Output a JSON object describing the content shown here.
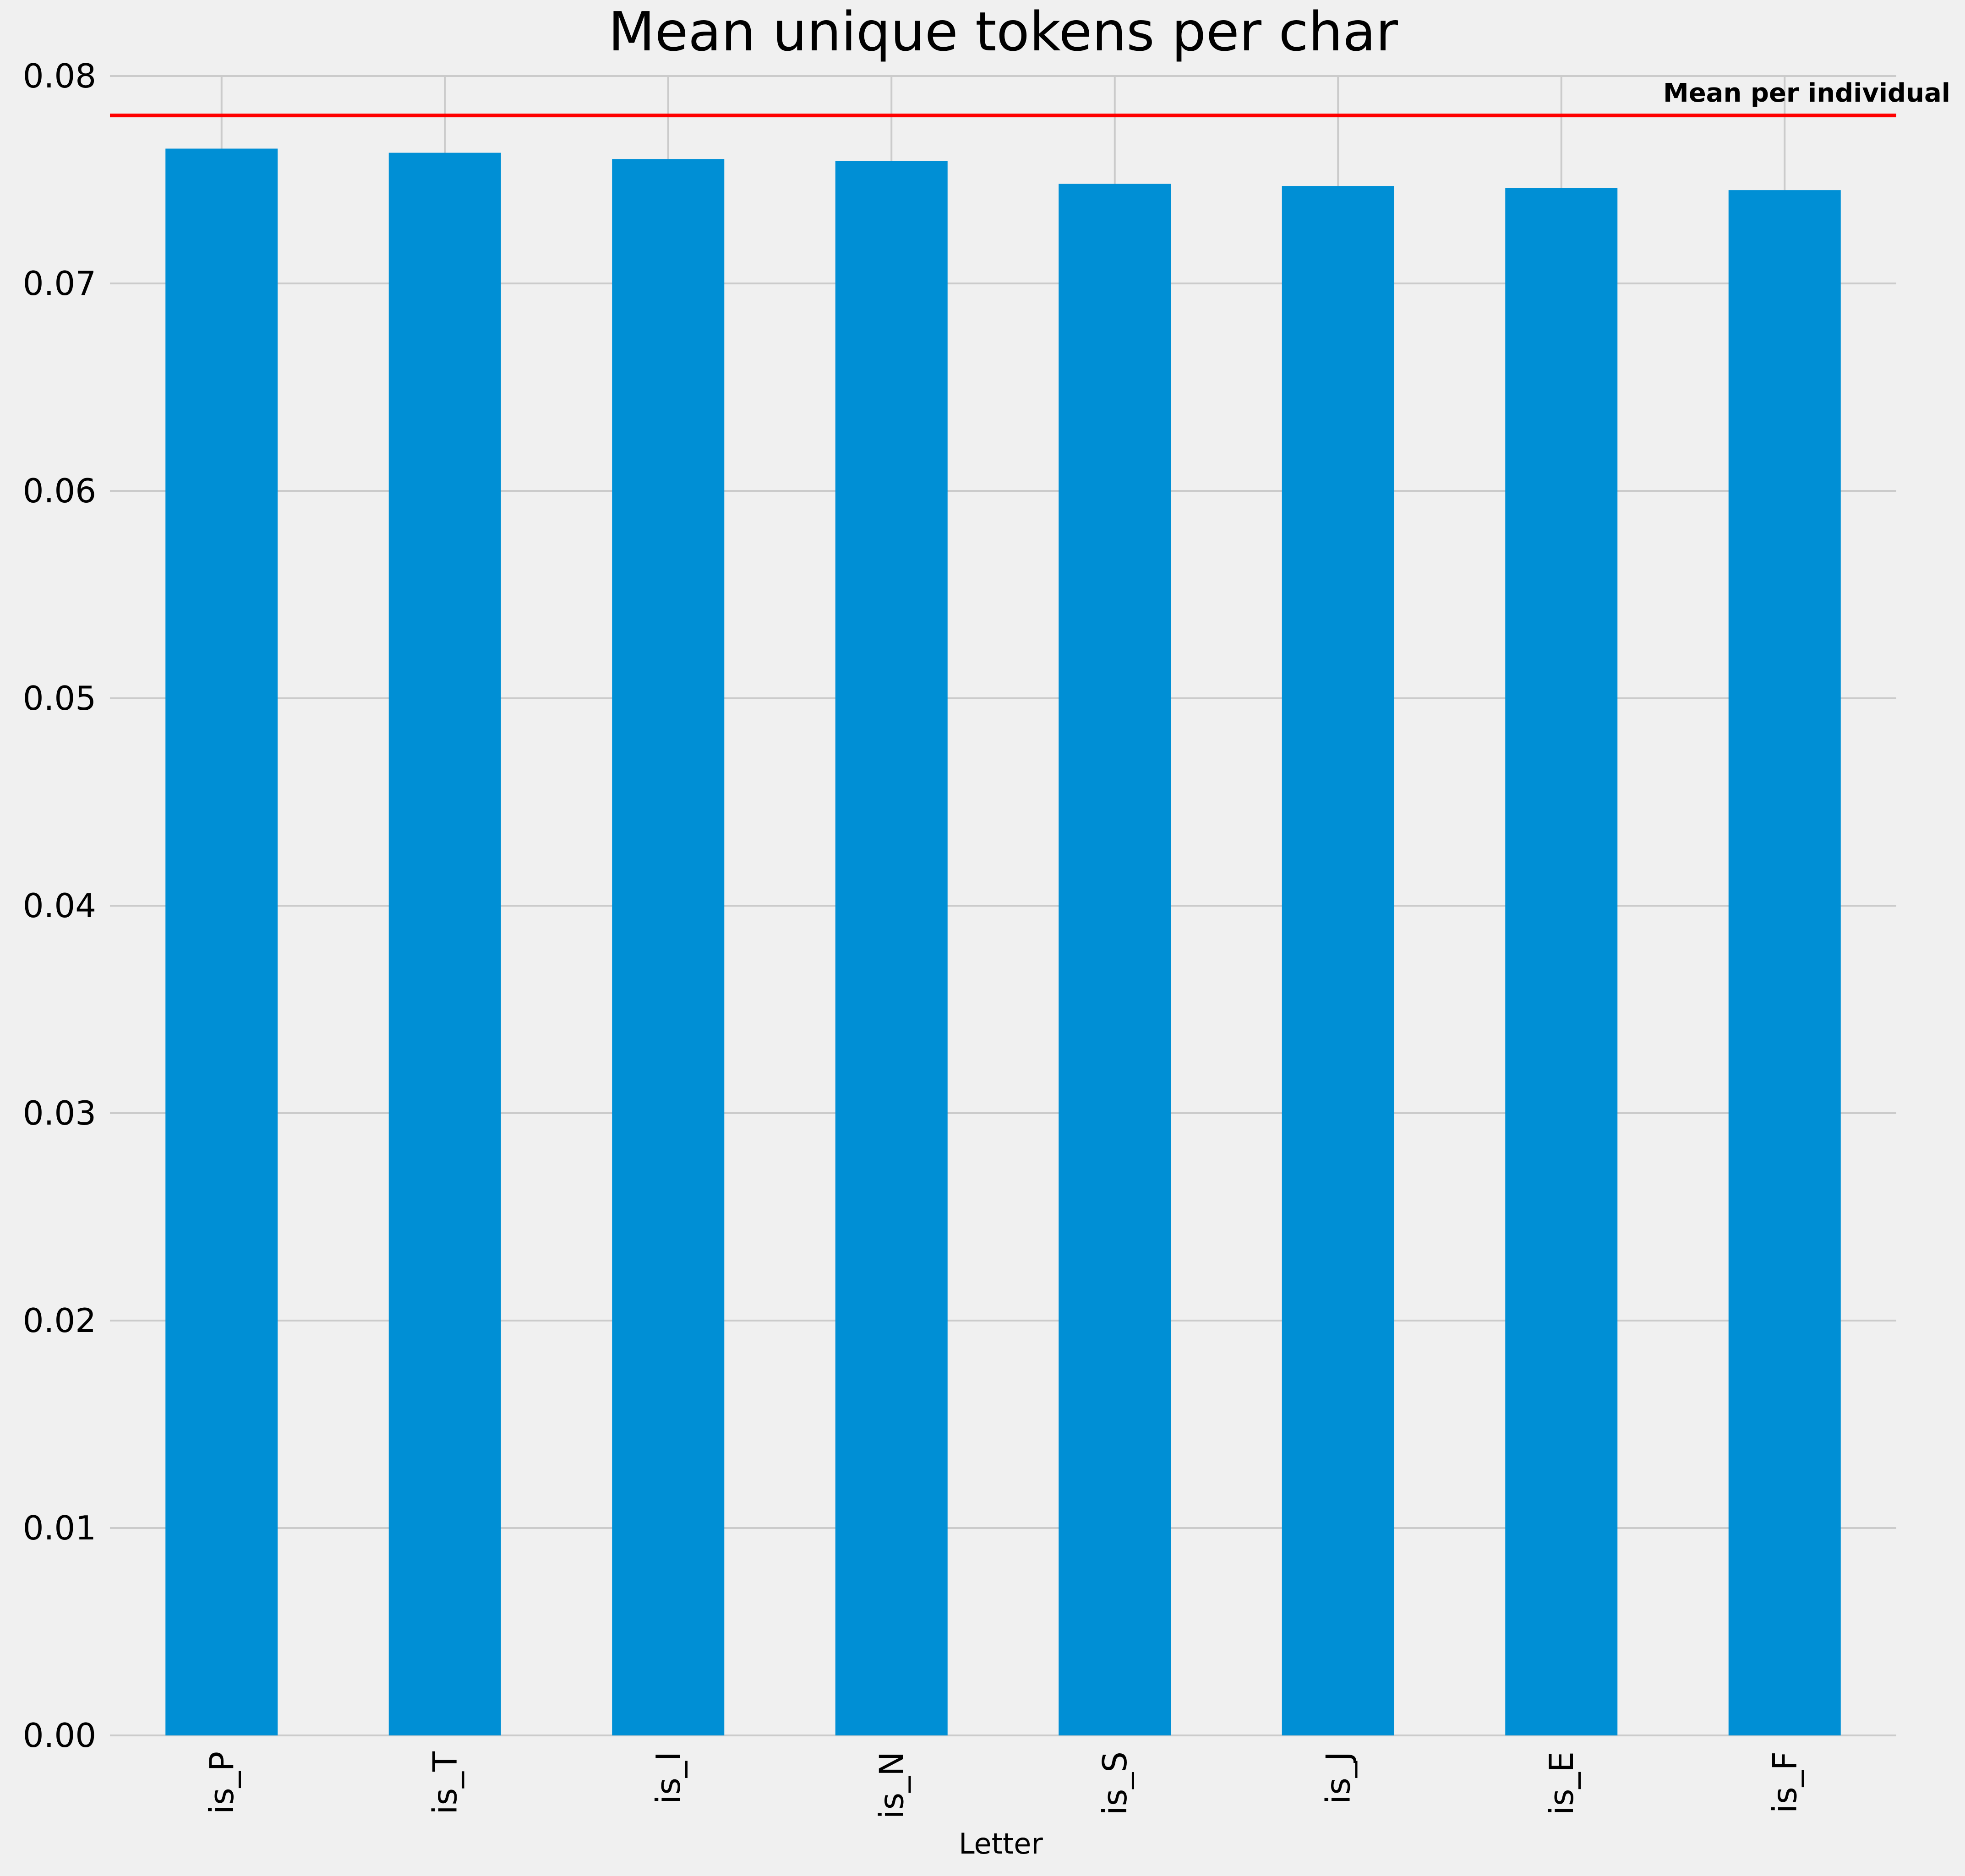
{
  "chart_data": {
    "type": "bar",
    "title": "Mean unique tokens per char",
    "xlabel": "Letter",
    "ylabel": "",
    "categories": [
      "is_P",
      "is_T",
      "is_I",
      "is_N",
      "is_S",
      "is_J",
      "is_E",
      "is_F"
    ],
    "values": [
      0.0765,
      0.0763,
      0.076,
      0.0759,
      0.0748,
      0.0747,
      0.0746,
      0.0745
    ],
    "ylim": [
      0,
      0.08
    ],
    "yticks": [
      "0.00",
      "0.01",
      "0.02",
      "0.03",
      "0.04",
      "0.05",
      "0.06",
      "0.07",
      "0.08"
    ],
    "grid": true,
    "reference_line": {
      "value": 0.0781,
      "label": "Mean per individual",
      "color": "#ff0000"
    },
    "colors": {
      "bar": "#008fd5",
      "background": "#f0f0f0",
      "grid": "#cbcbcb"
    }
  }
}
